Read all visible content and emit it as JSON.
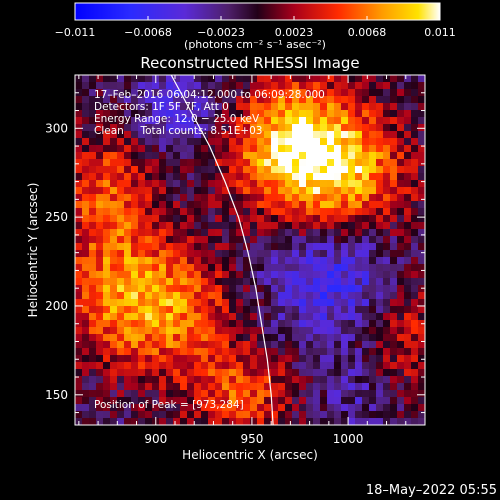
{
  "chart_data": {
    "type": "heatmap",
    "title": "Reconstructed RHESSI Image",
    "xlabel": "Heliocentric X (arcsec)",
    "ylabel": "Heliocentric Y (arcsec)",
    "xlim": [
      858,
      1040
    ],
    "ylim": [
      133,
      330
    ],
    "xticks": [
      900,
      950,
      1000
    ],
    "yticks": [
      150,
      200,
      250,
      300
    ],
    "colorbar": {
      "label": "(photons cm⁻² s⁻¹ asec⁻²)",
      "range": [
        -0.011,
        0.011
      ],
      "ticks": [
        "−0.011",
        "−0.0068",
        "−0.0023",
        "0.0023",
        "0.0068",
        "0.011"
      ]
    },
    "annotations": [
      "17–Feb–2016 06:04:12.000 to 06:09:28.000",
      "Detectors: 1F 5F 7F, Att 0",
      "Energy Range: 12.0 − 25.0 keV",
      "Clean     Total counts: 8.51E+03"
    ],
    "peak_label": "Position of Peak = [973,284]",
    "peak": [
      973,
      284
    ],
    "limb_curve": [
      [
        908,
        330
      ],
      [
        918,
        310
      ],
      [
        928,
        290
      ],
      [
        936,
        270
      ],
      [
        943,
        250
      ],
      [
        948,
        230
      ],
      [
        952,
        210
      ],
      [
        955,
        190
      ],
      [
        958,
        170
      ],
      [
        960,
        150
      ],
      [
        961,
        133
      ]
    ],
    "sources": [
      {
        "x": 973,
        "y": 292,
        "sx": 28,
        "sy": 26,
        "amp": 1.0
      },
      {
        "x": 1000,
        "y": 270,
        "sx": 26,
        "sy": 22,
        "amp": 0.55
      },
      {
        "x": 875,
        "y": 262,
        "sx": 18,
        "sy": 30,
        "amp": 0.6
      },
      {
        "x": 898,
        "y": 200,
        "sx": 32,
        "sy": 26,
        "amp": 0.85
      },
      {
        "x": 945,
        "y": 150,
        "sx": 22,
        "sy": 18,
        "amp": 0.55
      },
      {
        "x": 1032,
        "y": 180,
        "sx": 16,
        "sy": 30,
        "amp": 0.45
      },
      {
        "x": 990,
        "y": 215,
        "sx": 28,
        "sy": 22,
        "amp": -0.45
      },
      {
        "x": 915,
        "y": 308,
        "sx": 22,
        "sy": 18,
        "amp": -0.35
      },
      {
        "x": 1010,
        "y": 150,
        "sx": 25,
        "sy": 16,
        "amp": -0.2
      }
    ]
  },
  "footer": {
    "timestamp": "18–May–2022 05:55"
  }
}
